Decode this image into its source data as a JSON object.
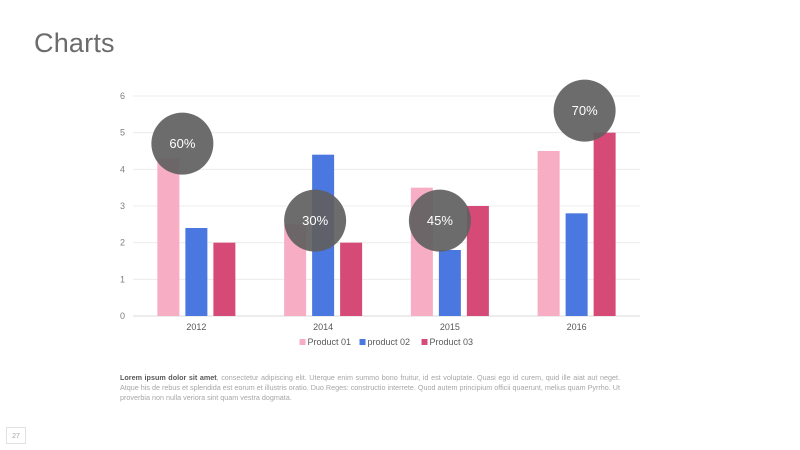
{
  "slide": {
    "title": "Charts",
    "page_number": "27",
    "body_bold": "Lorem ipsum dolor sit amet",
    "body_text": ", consectetur adipiscing elit. Uterque enim summo bono fruitur, id est voluptate. Quasi ego id curem, quid ille aiat aut neget. Atque his de rebus et splendida est eorum et illustris oratio. Duo Reges: constructio interrete. Quod autem principium officii quaerunt, melius quam Pyrrho. Ut proverbia non nulla veriora sint quam vestra dogmata."
  },
  "chart_data": {
    "type": "bar",
    "title": "",
    "xlabel": "",
    "ylabel": "",
    "categories": [
      "2012",
      "2014",
      "2015",
      "2016"
    ],
    "ylim": [
      0,
      6
    ],
    "yticks": [
      0,
      1,
      2,
      3,
      4,
      5,
      6
    ],
    "grid": true,
    "legend_position": "bottom",
    "series": [
      {
        "name": "Product 01",
        "color": "#f7aec4",
        "values": [
          4.3,
          2.5,
          3.5,
          4.5
        ]
      },
      {
        "name": "product 02",
        "color": "#4a78e0",
        "values": [
          2.4,
          4.4,
          1.8,
          2.8
        ]
      },
      {
        "name": "Product 03",
        "color": "#d64a78",
        "values": [
          2.0,
          2.0,
          3.0,
          5.0
        ]
      }
    ],
    "annotations": [
      {
        "label": "60%",
        "category": "2012",
        "value": 4.7
      },
      {
        "label": "30%",
        "category": "2014",
        "value": 2.6
      },
      {
        "label": "45%",
        "category": "2015",
        "value": 2.6
      },
      {
        "label": "70%",
        "category": "2016",
        "value": 5.6
      }
    ],
    "annotation_color": "#5f5f5f"
  }
}
